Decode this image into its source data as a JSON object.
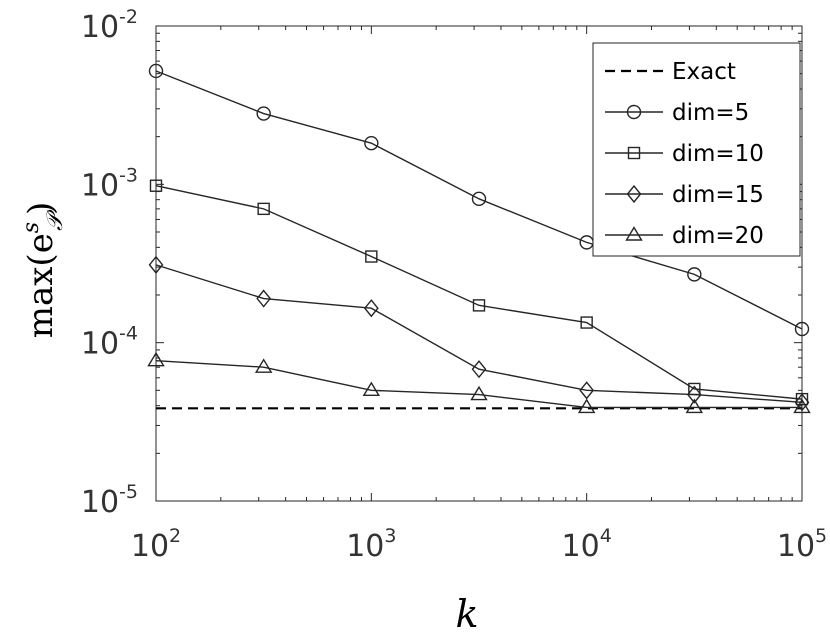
{
  "chart_data": {
    "type": "line",
    "x": [
      100,
      316.23,
      1000,
      3162.28,
      10000,
      31622.78,
      100000
    ],
    "xscale": "log",
    "yscale": "log",
    "xlim": [
      100,
      100000
    ],
    "ylim": [
      1e-05,
      0.01
    ],
    "xticks": [
      {
        "value": 100,
        "base": "10",
        "exp": "2"
      },
      {
        "value": 1000,
        "base": "10",
        "exp": "3"
      },
      {
        "value": 10000,
        "base": "10",
        "exp": "4"
      },
      {
        "value": 100000,
        "base": "10",
        "exp": "5"
      }
    ],
    "yticks": [
      {
        "value": 1e-05,
        "base": "10",
        "exp": "-5"
      },
      {
        "value": 0.0001,
        "base": "10",
        "exp": "-4"
      },
      {
        "value": 0.001,
        "base": "10",
        "exp": "-3"
      },
      {
        "value": 0.01,
        "base": "10",
        "exp": "-2"
      }
    ],
    "xlabel": "k",
    "ylabel": "max(e",
    "ylabel_sup": "s",
    "ylabel_sub": "𝒫",
    "ylabel_close": ")",
    "grid": false,
    "legend_position": "top-right",
    "exact": {
      "name": "Exact",
      "value": 3.85e-05
    },
    "series": [
      {
        "name": "dim=5",
        "marker": "circle",
        "values": [
          0.0052,
          0.0028,
          0.00182,
          0.00081,
          0.00043,
          0.00027,
          0.000122
        ]
      },
      {
        "name": "dim=10",
        "marker": "square",
        "values": [
          0.00098,
          0.0007,
          0.00035,
          0.000172,
          0.000134,
          5.1e-05,
          4.4e-05
        ]
      },
      {
        "name": "dim=15",
        "marker": "diamond",
        "values": [
          0.00031,
          0.00019,
          0.000165,
          6.8e-05,
          5e-05,
          4.7e-05,
          4.2e-05
        ]
      },
      {
        "name": "dim=20",
        "marker": "triangle",
        "values": [
          7.7e-05,
          7e-05,
          5e-05,
          4.7e-05,
          3.9e-05,
          3.9e-05,
          3.9e-05
        ]
      }
    ]
  }
}
